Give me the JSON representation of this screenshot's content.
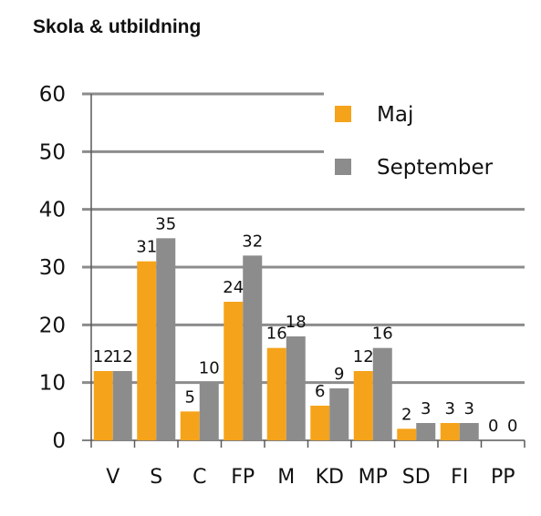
{
  "colors": {
    "maj": "#f5a31a",
    "september": "#8c8c8c",
    "grid": "#8c8c8c",
    "axis": "#595959"
  },
  "chart_data": {
    "type": "bar",
    "title": "Skola & utbildning",
    "categories": [
      "V",
      "S",
      "C",
      "FP",
      "M",
      "KD",
      "MP",
      "SD",
      "FI",
      "PP"
    ],
    "series": [
      {
        "name": "Maj",
        "values": [
          12,
          31,
          5,
          24,
          16,
          6,
          12,
          2,
          3,
          0
        ]
      },
      {
        "name": "September",
        "values": [
          12,
          35,
          10,
          32,
          18,
          9,
          16,
          3,
          3,
          0
        ]
      }
    ],
    "ylim": [
      0,
      60
    ],
    "yticks": [
      "0",
      "10",
      "20",
      "30",
      "40",
      "50",
      "60"
    ],
    "grid": true,
    "legend_position": "top-right"
  }
}
